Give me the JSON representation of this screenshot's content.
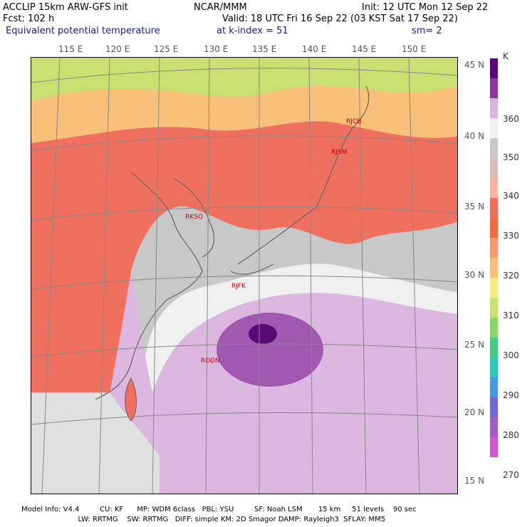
{
  "header": {
    "model": "ACCLIP 15km ARW-GFS init",
    "org": "NCAR/MMM",
    "init": "Init: 12 UTC Mon 12 Sep 22",
    "fcst": "Fcst:  102 h",
    "valid": "Valid: 18 UTC Fri 16 Sep 22 (03 KST Sat 17 Sep 22)",
    "field": "Equivalent potential temperature",
    "level": "at k-index =  51",
    "sm": "sm= 2"
  },
  "map": {
    "lon_labels": [
      "115 E",
      "120 E",
      "125 E",
      "130 E",
      "135 E",
      "140 E",
      "145 E",
      "150 E"
    ],
    "lat_labels": [
      "45 N",
      "40 N",
      "35 N",
      "30 N",
      "25 N",
      "20 N",
      "15 N"
    ],
    "stations": [
      "RJCB",
      "RJSM",
      "RKSO",
      "RJFK",
      "RODN"
    ]
  },
  "colorbar": {
    "units": "K",
    "labels": [
      "360",
      "350",
      "340",
      "330",
      "320",
      "310",
      "300",
      "290",
      "280",
      "270"
    ],
    "colors": [
      "#5a0a78",
      "#8c3a9c",
      "#d8b4dc",
      "#f0f0f0",
      "#c8c8c8",
      "#d8c0b8",
      "#f4b4a0",
      "#f07060",
      "#f46a40",
      "#f89870",
      "#f8c078",
      "#f8ec80",
      "#c8e070",
      "#88d868",
      "#48c880",
      "#30c8b8",
      "#4898e0",
      "#7068d0",
      "#a060c0",
      "#d058c8"
    ]
  },
  "footer": {
    "line1": "Model Info: V4.4         CU: KF      MP: WDM 6class   PBL: YSU         SF: Noah LSM       15 km     51 levels    90 sec",
    "line2": "                         LW: RRTMG    SW: RRTMG   DIFF: simple KM: 2D Smagor DAMP: Rayleigh3  SFLAY: MM5"
  }
}
